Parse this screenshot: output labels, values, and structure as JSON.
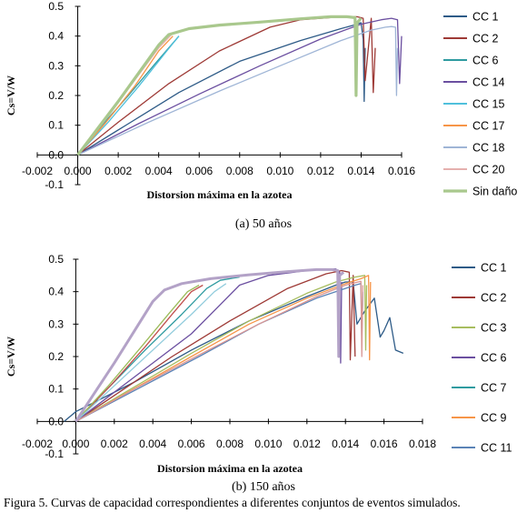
{
  "caption": "Figura 5. Curvas de capacidad correspondientes a diferentes conjuntos de eventos simulados.",
  "chart_data": [
    {
      "type": "line",
      "subtitle": "(a) 50 años",
      "xlabel": "Distorsion máxima en la azotea",
      "ylabel": "Cs=V/W",
      "xlim": [
        -0.002,
        0.016
      ],
      "ylim": [
        -0.1,
        0.5
      ],
      "xticks": [
        "-0.002",
        "0.000",
        "0.002",
        "0.004",
        "0.006",
        "0.008",
        "0.010",
        "0.012",
        "0.014",
        "0.016"
      ],
      "yticks": [
        "-0.1",
        "0.0",
        "0.1",
        "0.2",
        "0.3",
        "0.4",
        "0.5"
      ],
      "legend_position": "right",
      "series": [
        {
          "name": "CC 1",
          "color": "#2e5b87",
          "width": 1.3,
          "points": [
            [
              0,
              0
            ],
            [
              0.0025,
              0.105
            ],
            [
              0.005,
              0.21
            ],
            [
              0.008,
              0.315
            ],
            [
              0.011,
              0.385
            ],
            [
              0.013,
              0.425
            ],
            [
              0.0138,
              0.44
            ],
            [
              0.014,
              0.445
            ],
            [
              0.0141,
              0.39
            ],
            [
              0.01415,
              0.18
            ],
            [
              0.0142,
              0.36
            ]
          ]
        },
        {
          "name": "CC 2",
          "color": "#9e3a36",
          "width": 1.3,
          "points": [
            [
              0,
              0
            ],
            [
              0.002,
              0.11
            ],
            [
              0.0045,
              0.24
            ],
            [
              0.007,
              0.35
            ],
            [
              0.0095,
              0.43
            ],
            [
              0.011,
              0.455
            ],
            [
              0.0125,
              0.462
            ],
            [
              0.0132,
              0.465
            ],
            [
              0.0138,
              0.465
            ],
            [
              0.0141,
              0.46
            ],
            [
              0.0142,
              0.25
            ],
            [
              0.0145,
              0.46
            ],
            [
              0.0146,
              0.21
            ],
            [
              0.0147,
              0.36
            ]
          ]
        },
        {
          "name": "CC 6",
          "color": "#2f9ba0",
          "width": 1.3,
          "points": [
            [
              0,
              0
            ],
            [
              0.0012,
              0.1
            ],
            [
              0.0025,
              0.2
            ],
            [
              0.0038,
              0.305
            ],
            [
              0.005,
              0.4
            ]
          ]
        },
        {
          "name": "CC 14",
          "color": "#6b4fa0",
          "width": 1.3,
          "points": [
            [
              0,
              0
            ],
            [
              0.003,
              0.105
            ],
            [
              0.006,
              0.205
            ],
            [
              0.009,
              0.3
            ],
            [
              0.012,
              0.39
            ],
            [
              0.014,
              0.44
            ],
            [
              0.015,
              0.455
            ],
            [
              0.0155,
              0.46
            ],
            [
              0.0158,
              0.455
            ],
            [
              0.0159,
              0.24
            ],
            [
              0.016,
              0.4
            ]
          ]
        },
        {
          "name": "CC 15",
          "color": "#4fc0dc",
          "width": 1.3,
          "points": [
            [
              0,
              0
            ],
            [
              0.0015,
              0.11
            ],
            [
              0.003,
              0.23
            ],
            [
              0.0044,
              0.35
            ],
            [
              0.005,
              0.4
            ]
          ]
        },
        {
          "name": "CC 17",
          "color": "#f79548",
          "width": 1.3,
          "points": [
            [
              0,
              0
            ],
            [
              0.0014,
              0.11
            ],
            [
              0.0028,
              0.23
            ],
            [
              0.004,
              0.35
            ],
            [
              0.0047,
              0.4
            ]
          ]
        },
        {
          "name": "CC 18",
          "color": "#9fb5d6",
          "width": 1.3,
          "points": [
            [
              0,
              0
            ],
            [
              0.0035,
              0.11
            ],
            [
              0.007,
              0.215
            ],
            [
              0.01,
              0.3
            ],
            [
              0.013,
              0.385
            ],
            [
              0.0145,
              0.42
            ],
            [
              0.0152,
              0.43
            ],
            [
              0.0155,
              0.432
            ],
            [
              0.0157,
              0.43
            ],
            [
              0.01575,
              0.2
            ],
            [
              0.0158,
              0.36
            ]
          ]
        },
        {
          "name": "CC 20",
          "color": "#e5b0ae",
          "width": 1.3,
          "points": [
            [
              0,
              0
            ],
            [
              0.0014,
              0.12
            ],
            [
              0.0028,
              0.25
            ],
            [
              0.004,
              0.36
            ],
            [
              0.0047,
              0.41
            ]
          ]
        },
        {
          "name": "Sin daño",
          "color": "#a9c88d",
          "width": 3.2,
          "points": [
            [
              0,
              0
            ],
            [
              0.001,
              0.09
            ],
            [
              0.002,
              0.18
            ],
            [
              0.003,
              0.275
            ],
            [
              0.004,
              0.37
            ],
            [
              0.0045,
              0.405
            ],
            [
              0.0055,
              0.425
            ],
            [
              0.007,
              0.437
            ],
            [
              0.009,
              0.447
            ],
            [
              0.011,
              0.458
            ],
            [
              0.0125,
              0.465
            ],
            [
              0.0133,
              0.465
            ],
            [
              0.0137,
              0.462
            ],
            [
              0.01375,
              0.2
            ],
            [
              0.0138,
              0.445
            ],
            [
              0.014,
              0.46
            ]
          ]
        }
      ]
    },
    {
      "type": "line",
      "subtitle": "(b) 150 años",
      "xlabel": "Distorsion máxima en la azotea",
      "ylabel": "Cs=V/W",
      "xlim": [
        -0.002,
        0.018
      ],
      "ylim": [
        -0.1,
        0.5
      ],
      "xticks": [
        "-0.002",
        "0.000",
        "0.002",
        "0.004",
        "0.006",
        "0.008",
        "0.010",
        "0.012",
        "0.014",
        "0.016",
        "0.018"
      ],
      "yticks": [
        "-0.1",
        "0.0",
        "0.1",
        "0.2",
        "0.3",
        "0.4",
        "0.5"
      ],
      "legend_position": "right",
      "series": [
        {
          "name": "CC 1",
          "color": "#2e5b87",
          "width": 1.3,
          "points": [
            [
              -0.0006,
              0
            ],
            [
              0.0,
              0.03
            ],
            [
              0.003,
              0.12
            ],
            [
              0.006,
              0.22
            ],
            [
              0.009,
              0.31
            ],
            [
              0.012,
              0.385
            ],
            [
              0.0135,
              0.42
            ],
            [
              0.014,
              0.43
            ],
            [
              0.0144,
              0.43
            ],
            [
              0.0146,
              0.3
            ],
            [
              0.015,
              0.34
            ],
            [
              0.0155,
              0.38
            ],
            [
              0.0158,
              0.26
            ],
            [
              0.016,
              0.28
            ],
            [
              0.0163,
              0.32
            ],
            [
              0.0166,
              0.22
            ],
            [
              0.017,
              0.21
            ]
          ]
        },
        {
          "name": "CC 2",
          "color": "#9e3a36",
          "width": 1.3,
          "points": [
            [
              0,
              0
            ],
            [
              0.0025,
              0.1
            ],
            [
              0.005,
              0.2
            ],
            [
              0.008,
              0.31
            ],
            [
              0.011,
              0.41
            ],
            [
              0.013,
              0.455
            ],
            [
              0.0138,
              0.465
            ],
            [
              0.0142,
              0.46
            ],
            [
              0.01425,
              0.19
            ],
            [
              0.0144,
              0.45
            ],
            [
              0.0145,
              0.2
            ]
          ]
        },
        {
          "name": "CC 3",
          "color": "#a7bd5f",
          "width": 1.3,
          "points": [
            [
              0,
              0
            ],
            [
              0.003,
              0.105
            ],
            [
              0.006,
              0.21
            ],
            [
              0.009,
              0.31
            ],
            [
              0.012,
              0.395
            ],
            [
              0.0135,
              0.43
            ],
            [
              0.0145,
              0.445
            ],
            [
              0.015,
              0.45
            ],
            [
              0.01505,
              0.22
            ],
            [
              0.0151,
              0.42
            ]
          ]
        },
        {
          "name": "CC 6",
          "color": "#6b4fa0",
          "width": 1.3,
          "points": [
            [
              0,
              0
            ],
            [
              0.002,
              0.09
            ],
            [
              0.004,
              0.18
            ],
            [
              0.006,
              0.27
            ],
            [
              0.0075,
              0.36
            ],
            [
              0.0085,
              0.42
            ],
            [
              0.01,
              0.45
            ],
            [
              0.012,
              0.465
            ],
            [
              0.0132,
              0.47
            ],
            [
              0.0135,
              0.47
            ],
            [
              0.0137,
              0.46
            ],
            [
              0.01375,
              0.18
            ],
            [
              0.0138,
              0.43
            ]
          ]
        },
        {
          "name": "CC 7",
          "color": "#2f9ba0",
          "width": 1.3,
          "points": [
            [
              0,
              0
            ],
            [
              0.0018,
              0.11
            ],
            [
              0.0036,
              0.22
            ],
            [
              0.0055,
              0.33
            ],
            [
              0.0068,
              0.41
            ],
            [
              0.0075,
              0.435
            ],
            [
              0.0085,
              0.445
            ]
          ]
        },
        {
          "name": "CC 9",
          "color": "#f79548",
          "width": 1.3,
          "points": [
            [
              0,
              0
            ],
            [
              0.003,
              0.1
            ],
            [
              0.006,
              0.2
            ],
            [
              0.009,
              0.3
            ],
            [
              0.012,
              0.38
            ],
            [
              0.014,
              0.425
            ],
            [
              0.0148,
              0.44
            ],
            [
              0.015,
              0.445
            ],
            [
              0.0152,
              0.45
            ],
            [
              0.01525,
              0.19
            ],
            [
              0.0153,
              0.43
            ]
          ]
        },
        {
          "name": "CC 11",
          "color": "#5b83b6",
          "width": 1.3,
          "points": [
            [
              0,
              0
            ],
            [
              0.0032,
              0.1
            ],
            [
              0.0064,
              0.2
            ],
            [
              0.0095,
              0.3
            ],
            [
              0.0125,
              0.38
            ],
            [
              0.014,
              0.41
            ],
            [
              0.0145,
              0.42
            ],
            [
              0.0148,
              0.425
            ],
            [
              0.01485,
              0.25
            ],
            [
              0.0149,
              0.4
            ]
          ]
        },
        {
          "color": "#c0504d",
          "width": 1.3,
          "points": [
            [
              0,
              0
            ],
            [
              0.0018,
              0.11
            ],
            [
              0.0036,
              0.23
            ],
            [
              0.005,
              0.33
            ],
            [
              0.006,
              0.4
            ],
            [
              0.0066,
              0.42
            ]
          ]
        },
        {
          "color": "#9bbb59",
          "width": 1.3,
          "points": [
            [
              0,
              0
            ],
            [
              0.0017,
              0.11
            ],
            [
              0.0034,
              0.23
            ],
            [
              0.0048,
              0.33
            ],
            [
              0.0058,
              0.4
            ],
            [
              0.0064,
              0.42
            ]
          ]
        },
        {
          "color": "#d99694",
          "width": 1.3,
          "points": [
            [
              0,
              0
            ],
            [
              0.0032,
              0.105
            ],
            [
              0.0064,
              0.205
            ],
            [
              0.0095,
              0.3
            ],
            [
              0.0125,
              0.385
            ],
            [
              0.014,
              0.42
            ],
            [
              0.0148,
              0.432
            ],
            [
              0.01485,
              0.2
            ],
            [
              0.0149,
              0.42
            ]
          ]
        },
        {
          "color": "#93cddd",
          "width": 1.3,
          "points": [
            [
              0,
              0
            ],
            [
              0.002,
              0.11
            ],
            [
              0.004,
              0.22
            ],
            [
              0.006,
              0.33
            ],
            [
              0.0072,
              0.4
            ],
            [
              0.0078,
              0.425
            ]
          ]
        },
        {
          "color": "#b3a2c7",
          "width": 3.0,
          "points": [
            [
              0,
              0
            ],
            [
              0.001,
              0.09
            ],
            [
              0.002,
              0.18
            ],
            [
              0.003,
              0.275
            ],
            [
              0.004,
              0.37
            ],
            [
              0.0046,
              0.405
            ],
            [
              0.0055,
              0.425
            ],
            [
              0.007,
              0.44
            ],
            [
              0.009,
              0.452
            ],
            [
              0.011,
              0.462
            ],
            [
              0.0125,
              0.468
            ],
            [
              0.0133,
              0.468
            ],
            [
              0.0136,
              0.465
            ],
            [
              0.01365,
              0.2
            ],
            [
              0.0137,
              0.45
            ],
            [
              0.0139,
              0.46
            ]
          ]
        }
      ]
    }
  ]
}
